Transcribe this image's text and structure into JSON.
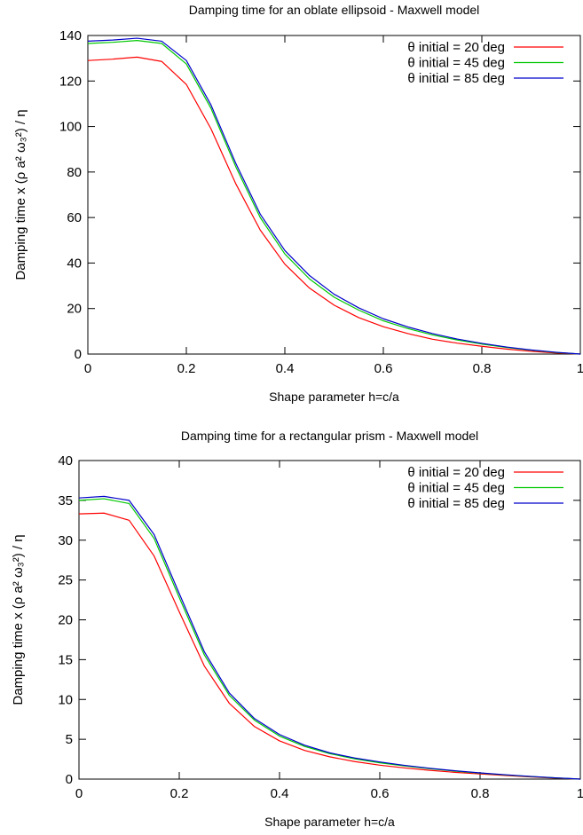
{
  "chart_data": [
    {
      "type": "line",
      "title": "Damping time for an oblate ellipsoid - Maxwell model",
      "xlabel": "Shape parameter h=c/a",
      "ylabel": "Damping time x (ρ a² ω₃²) / η",
      "xlim": [
        0,
        1
      ],
      "ylim": [
        0,
        140
      ],
      "xticks": [
        0,
        0.2,
        0.4,
        0.6,
        0.8,
        1
      ],
      "xtick_labels": [
        "0",
        "0.2",
        "0.4",
        "0.6",
        "0.8",
        "1"
      ],
      "yticks": [
        0,
        20,
        40,
        60,
        80,
        100,
        120,
        140
      ],
      "ytick_labels": [
        "0",
        "20",
        "40",
        "60",
        "80",
        "100",
        "120",
        "140"
      ],
      "grid": false,
      "legend_position": "top-right",
      "x": [
        0,
        0.05,
        0.1,
        0.15,
        0.2,
        0.25,
        0.3,
        0.35,
        0.4,
        0.45,
        0.5,
        0.55,
        0.6,
        0.65,
        0.7,
        0.75,
        0.8,
        0.85,
        0.9,
        0.95,
        1.0
      ],
      "series": [
        {
          "name": "θ initial = 20 deg",
          "color": "#ff0000",
          "values": [
            129,
            129.6,
            130.5,
            128.6,
            118.5,
            99,
            75,
            54.5,
            39.5,
            29,
            21.5,
            16,
            12,
            9,
            6.5,
            4.8,
            3.4,
            2.2,
            1.2,
            0.5,
            0
          ]
        },
        {
          "name": "θ initial = 45 deg",
          "color": "#00c800",
          "values": [
            136.5,
            137,
            137.8,
            136.5,
            127.5,
            108,
            82.5,
            60,
            44,
            33,
            25,
            19.3,
            14.6,
            11.2,
            8.4,
            6.2,
            4.4,
            2.9,
            1.7,
            0.7,
            0
          ]
        },
        {
          "name": "θ initial = 85 deg",
          "color": "#0000cc",
          "values": [
            137.5,
            138,
            138.8,
            137.5,
            129,
            109.5,
            84,
            61.5,
            45.5,
            34.5,
            26.3,
            20.3,
            15.5,
            11.9,
            9,
            6.6,
            4.7,
            3.1,
            1.8,
            0.8,
            0
          ]
        }
      ]
    },
    {
      "type": "line",
      "title": "Damping time for a rectangular prism - Maxwell model",
      "xlabel": "Shape parameter h=c/a",
      "ylabel": "Damping time x (ρ a² ω₃²) / η",
      "xlim": [
        0,
        1
      ],
      "ylim": [
        0,
        40
      ],
      "xticks": [
        0,
        0.2,
        0.4,
        0.6,
        0.8,
        1
      ],
      "xtick_labels": [
        "0",
        "0.2",
        "0.4",
        "0.6",
        "0.8",
        "1"
      ],
      "yticks": [
        0,
        5,
        10,
        15,
        20,
        25,
        30,
        35,
        40
      ],
      "ytick_labels": [
        "0",
        "5",
        "10",
        "15",
        "20",
        "25",
        "30",
        "35",
        "40"
      ],
      "grid": false,
      "legend_position": "top-right",
      "x": [
        0,
        0.05,
        0.1,
        0.15,
        0.2,
        0.25,
        0.3,
        0.35,
        0.4,
        0.45,
        0.5,
        0.55,
        0.6,
        0.65,
        0.7,
        0.75,
        0.8,
        0.85,
        0.9,
        0.95,
        1.0
      ],
      "series": [
        {
          "name": "θ initial = 20 deg",
          "color": "#ff0000",
          "values": [
            33.3,
            33.4,
            32.5,
            28,
            21,
            14.2,
            9.5,
            6.6,
            4.8,
            3.6,
            2.8,
            2.2,
            1.75,
            1.4,
            1.1,
            0.85,
            0.65,
            0.45,
            0.28,
            0.12,
            0
          ]
        },
        {
          "name": "θ initial = 45 deg",
          "color": "#00c800",
          "values": [
            35,
            35.2,
            34.6,
            30.2,
            22.8,
            15.6,
            10.5,
            7.4,
            5.4,
            4.1,
            3.2,
            2.55,
            2.05,
            1.65,
            1.3,
            1,
            0.75,
            0.52,
            0.32,
            0.15,
            0
          ]
        },
        {
          "name": "θ initial = 85 deg",
          "color": "#0000cc",
          "values": [
            35.3,
            35.5,
            35,
            30.7,
            23.3,
            16,
            10.8,
            7.6,
            5.6,
            4.25,
            3.3,
            2.65,
            2.15,
            1.72,
            1.36,
            1.05,
            0.78,
            0.55,
            0.34,
            0.16,
            0
          ]
        }
      ]
    }
  ]
}
